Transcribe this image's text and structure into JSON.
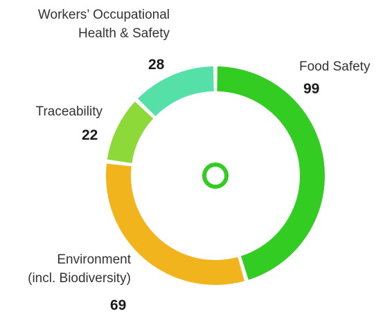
{
  "chart_data": {
    "type": "pie",
    "donut": true,
    "categories": [
      "Food Safety",
      "Environment (incl. Biodiversity)",
      "Traceability",
      "Workers’ Occupational Health & Safety"
    ],
    "values": [
      99,
      69,
      22,
      28
    ],
    "labels": [
      {
        "lines": [
          "Food Safety"
        ],
        "value": "99"
      },
      {
        "lines": [
          "Environment",
          "(incl. Biodiversity)"
        ],
        "value": "69"
      },
      {
        "lines": [
          "Traceability"
        ],
        "value": "22"
      },
      {
        "lines": [
          "Workers’ Occupational",
          "Health & Safety"
        ],
        "value": "28"
      }
    ],
    "colors": [
      "#33cc22",
      "#f2b41c",
      "#8ed93a",
      "#55e0a8"
    ],
    "center_ring_color": "#33cc22",
    "start_angle_deg": 0,
    "direction": "clockwise",
    "legend": "none",
    "grid": false
  }
}
